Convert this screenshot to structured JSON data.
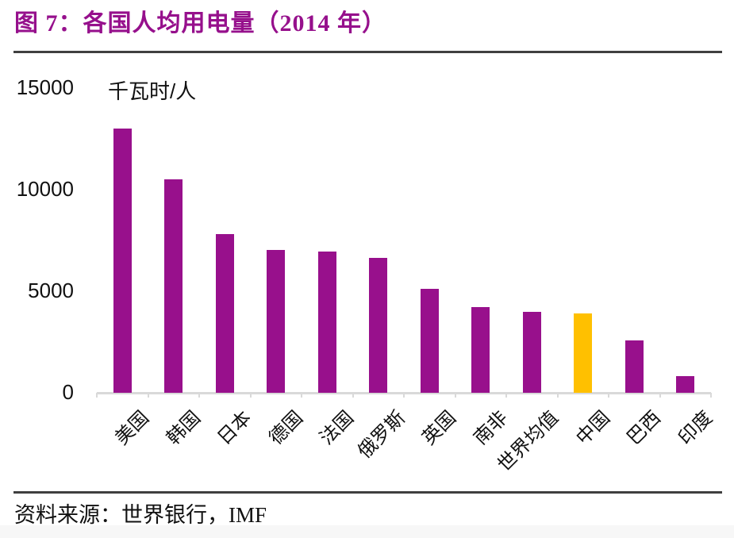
{
  "header": {
    "title": "图 7：各国人均用电量（2014 年）"
  },
  "footer": {
    "source": "资料来源：世界银行，IMF"
  },
  "chart_data": {
    "type": "bar",
    "title": "各国人均用电量（2014 年）",
    "unit_label": "千瓦时/人",
    "xlabel": "",
    "ylabel": "千瓦时/人",
    "categories": [
      "美国",
      "韩国",
      "日本",
      "德国",
      "法国",
      "俄罗斯",
      "英国",
      "南非",
      "世界均值",
      "中国",
      "巴西",
      "印度"
    ],
    "values": [
      13000,
      10500,
      7800,
      7050,
      6950,
      6650,
      5100,
      4200,
      3980,
      3900,
      2570,
      820
    ],
    "ylim": [
      0,
      15000
    ],
    "yticks": [
      0,
      5000,
      10000,
      15000
    ],
    "grid": false,
    "legend": "none",
    "bar_color": "#98108C",
    "highlight_color": "#FFC000",
    "highlight_category": "中国",
    "highlight_index": 9
  },
  "colors": {
    "title": "#96108C",
    "rule": "#3f3f3f",
    "axis": "#d9d9d9",
    "text": "#111111"
  }
}
